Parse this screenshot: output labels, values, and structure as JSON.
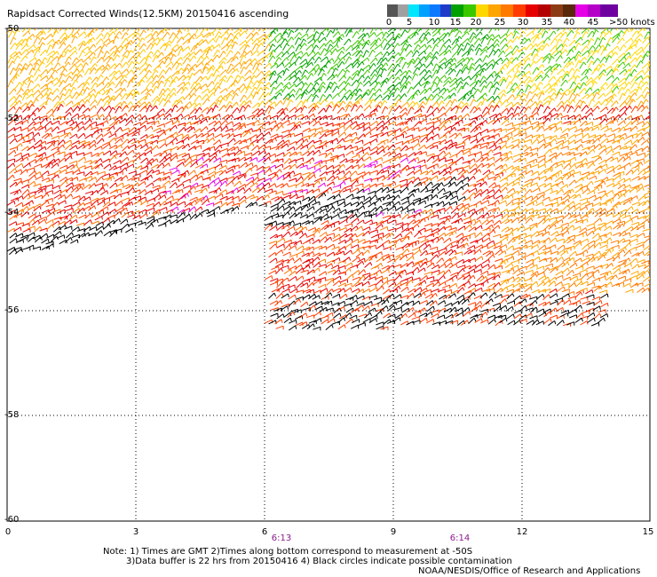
{
  "title": "Rapidsact Corrected Winds(12.5KM) 20150416 ascending",
  "legend": {
    "units": ">50 knots",
    "labels": [
      "0",
      "5",
      "10",
      "15",
      "20",
      "25",
      "30",
      "35",
      "40",
      "45"
    ],
    "colors": [
      "#555555",
      "#00c8ff",
      "#0a78ff",
      "#1e3cc8",
      "#00a000",
      "#ffc800",
      "#ff8c00",
      "#ff3c00",
      "#e60000",
      "#8c3c14",
      "#e600e6",
      "#6e00a0"
    ]
  },
  "axes": {
    "x_ticks": [
      "0",
      "3",
      "6",
      "9",
      "12",
      "15"
    ],
    "y_ticks": [
      "-50",
      "-52",
      "-54",
      "-56",
      "-58",
      "-60"
    ]
  },
  "times": [
    "6:13",
    "6:14"
  ],
  "notes": {
    "line1": "Note: 1) Times are GMT 2)Times along bottom correspond to measurement at -50S",
    "line2": "3)Data buffer is 22 hrs from 20150416 4) Black circles indicate possible contamination",
    "line3": "NOAA/NESDIS/Office of Research and Applications"
  }
}
